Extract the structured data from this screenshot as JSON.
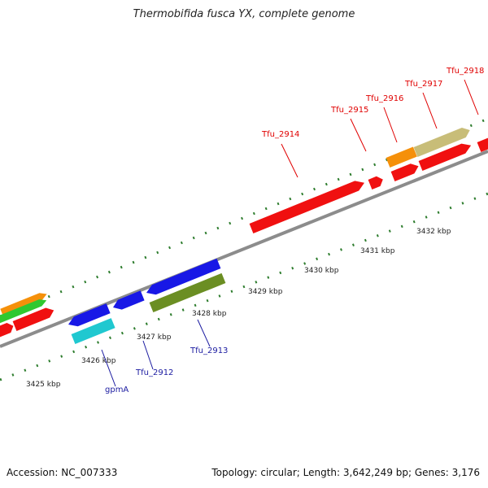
{
  "title": "Thermobifida fusca YX, complete genome",
  "footer": {
    "accession": "Accession: NC_007333",
    "summary": "Topology: circular; Length: 3,642,249 bp; Genes: 3,176"
  },
  "colors": {
    "backbone": "#8c8c8c",
    "tick": "#2e7d2e",
    "red": "#f01010",
    "blue": "#1818e6",
    "cyan": "#20c8d0",
    "olive": "#6b8e23",
    "orange": "#f5900a",
    "khaki": "#c8bd78",
    "green": "#30c830",
    "label_red": "#e00000",
    "label_blue": "#1a1aa0"
  },
  "ruler": [
    {
      "label": "3425 kbp"
    },
    {
      "label": "3426 kbp"
    },
    {
      "label": "3427 kbp"
    },
    {
      "label": "3428 kbp"
    },
    {
      "label": "3429 kbp"
    },
    {
      "label": "3430 kbp"
    },
    {
      "label": "3431 kbp"
    },
    {
      "label": "3432 kbp"
    }
  ],
  "gene_labels": [
    {
      "label": "Tfu_2914",
      "color": "red"
    },
    {
      "label": "Tfu_2915",
      "color": "red"
    },
    {
      "label": "Tfu_2916",
      "color": "red"
    },
    {
      "label": "Tfu_2917",
      "color": "red"
    },
    {
      "label": "Tfu_2918",
      "color": "red"
    },
    {
      "label": "gpmA",
      "color": "blue"
    },
    {
      "label": "Tfu_2912",
      "color": "blue"
    },
    {
      "label": "Tfu_2913",
      "color": "blue"
    }
  ]
}
